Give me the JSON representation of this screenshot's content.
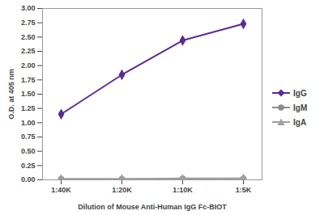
{
  "chart_data": {
    "type": "line",
    "xlabel": "Dilution of Mouse Anti-Human IgG Fc-BIOT",
    "ylabel": "O.D. at 405 nm",
    "categories": [
      "1:40K",
      "1:20K",
      "1:10K",
      "1:5K"
    ],
    "series": [
      {
        "name": "IgG",
        "color": "#5b2c94",
        "marker": "diamond",
        "values": [
          1.15,
          1.84,
          2.44,
          2.73
        ]
      },
      {
        "name": "IgM",
        "color": "#8c8c8c",
        "marker": "circle",
        "values": [
          0.01,
          0.01,
          0.02,
          0.02
        ]
      },
      {
        "name": "IgA",
        "color": "#a0a0a0",
        "marker": "triangle",
        "values": [
          0.01,
          0.01,
          0.01,
          0.02
        ]
      }
    ],
    "ylim": [
      0,
      3
    ],
    "yticks": [
      {
        "value": 0,
        "label": "0.00"
      },
      {
        "value": 0.25,
        "label": "0.25"
      },
      {
        "value": 0.5,
        "label": "0.50"
      },
      {
        "value": 0.75,
        "label": "0.75"
      },
      {
        "value": 1,
        "label": "1.00"
      },
      {
        "value": 1.25,
        "label": "1.25"
      },
      {
        "value": 1.5,
        "label": "1.50"
      },
      {
        "value": 1.75,
        "label": "1.75"
      },
      {
        "value": 2,
        "label": "2.00"
      },
      {
        "value": 2.25,
        "label": "2.25"
      },
      {
        "value": 2.5,
        "label": "2.50"
      },
      {
        "value": 2.75,
        "label": "2.75"
      },
      {
        "value": 3,
        "label": "3.00"
      }
    ],
    "grid": false,
    "legend": "right"
  }
}
